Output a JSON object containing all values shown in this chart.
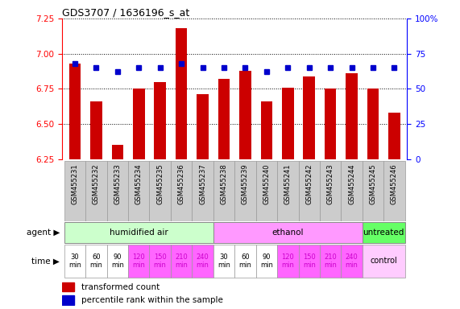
{
  "title": "GDS3707 / 1636196_s_at",
  "samples": [
    "GSM455231",
    "GSM455232",
    "GSM455233",
    "GSM455234",
    "GSM455235",
    "GSM455236",
    "GSM455237",
    "GSM455238",
    "GSM455239",
    "GSM455240",
    "GSM455241",
    "GSM455242",
    "GSM455243",
    "GSM455244",
    "GSM455245",
    "GSM455246"
  ],
  "bar_values": [
    6.93,
    6.66,
    6.35,
    6.75,
    6.8,
    7.18,
    6.71,
    6.82,
    6.88,
    6.66,
    6.76,
    6.84,
    6.75,
    6.86,
    6.75,
    6.58
  ],
  "dot_values": [
    68,
    65,
    62,
    65,
    65,
    68,
    65,
    65,
    65,
    62,
    65,
    65,
    65,
    65,
    65,
    65
  ],
  "ylim": [
    6.25,
    7.25
  ],
  "y2lim": [
    0,
    100
  ],
  "yticks": [
    6.25,
    6.5,
    6.75,
    7.0,
    7.25
  ],
  "y2ticks": [
    0,
    25,
    50,
    75,
    100
  ],
  "y2tick_labels": [
    "0",
    "25",
    "50",
    "75",
    "100%"
  ],
  "bar_color": "#cc0000",
  "dot_color": "#0000cc",
  "bar_bottom": 6.25,
  "agent_groups": [
    {
      "label": "humidified air",
      "start": 0,
      "end": 7,
      "color": "#ccffcc"
    },
    {
      "label": "ethanol",
      "start": 7,
      "end": 14,
      "color": "#ff99ff"
    },
    {
      "label": "untreated",
      "start": 14,
      "end": 16,
      "color": "#66ff66"
    }
  ],
  "time_labels_14": [
    "30\nmin",
    "60\nmin",
    "90\nmin",
    "120\nmin",
    "150\nmin",
    "210\nmin",
    "240\nmin",
    "30\nmin",
    "60\nmin",
    "90\nmin",
    "120\nmin",
    "150\nmin",
    "210\nmin",
    "240\nmin"
  ],
  "time_colors_14": [
    "#ffffff",
    "#ffffff",
    "#ffffff",
    "#ff66ff",
    "#ff66ff",
    "#ff66ff",
    "#ff66ff",
    "#ffffff",
    "#ffffff",
    "#ffffff",
    "#ff66ff",
    "#ff66ff",
    "#ff66ff",
    "#ff66ff"
  ],
  "time_fontcolors_14": [
    "#000000",
    "#000000",
    "#000000",
    "#cc00cc",
    "#cc00cc",
    "#cc00cc",
    "#cc00cc",
    "#000000",
    "#000000",
    "#000000",
    "#cc00cc",
    "#cc00cc",
    "#cc00cc",
    "#cc00cc"
  ],
  "control_color": "#ffccff",
  "sample_bg": "#cccccc",
  "legend_items": [
    {
      "color": "#cc0000",
      "label": "transformed count"
    },
    {
      "color": "#0000cc",
      "label": "percentile rank within the sample"
    }
  ]
}
